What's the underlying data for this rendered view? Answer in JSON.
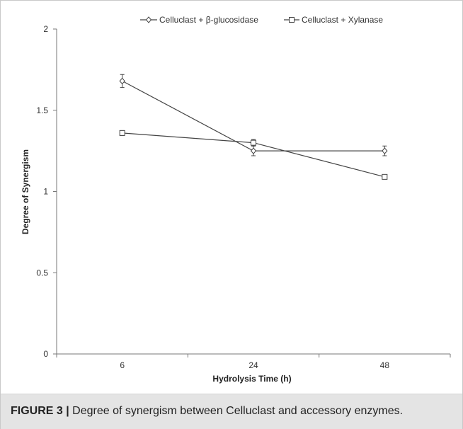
{
  "caption": {
    "label": "FIGURE 3 |",
    "text": "Degree of synergism between Celluclast and accessory enzymes."
  },
  "chart_data": {
    "type": "line",
    "title": "",
    "xlabel": "Hydrolysis Time (h)",
    "ylabel": "Degree of Synergism",
    "categories": [
      "6",
      "24",
      "48"
    ],
    "ylim": [
      0,
      2
    ],
    "yticks": [
      "0",
      "0.5",
      "1",
      "1.5",
      "2"
    ],
    "grid": false,
    "legend_position": "top",
    "series": [
      {
        "name": "Celluclast + β-glucosidase",
        "marker": "diamond",
        "values": [
          1.68,
          1.25,
          1.25
        ],
        "errors": [
          0.04,
          0.03,
          0.03
        ]
      },
      {
        "name": "Celluclast + Xylanase",
        "marker": "square",
        "values": [
          1.36,
          1.3,
          1.09
        ],
        "errors": [
          0.015,
          0.02,
          0.01
        ]
      }
    ],
    "colors": {
      "line": "#444444",
      "axis": "#777777"
    }
  }
}
